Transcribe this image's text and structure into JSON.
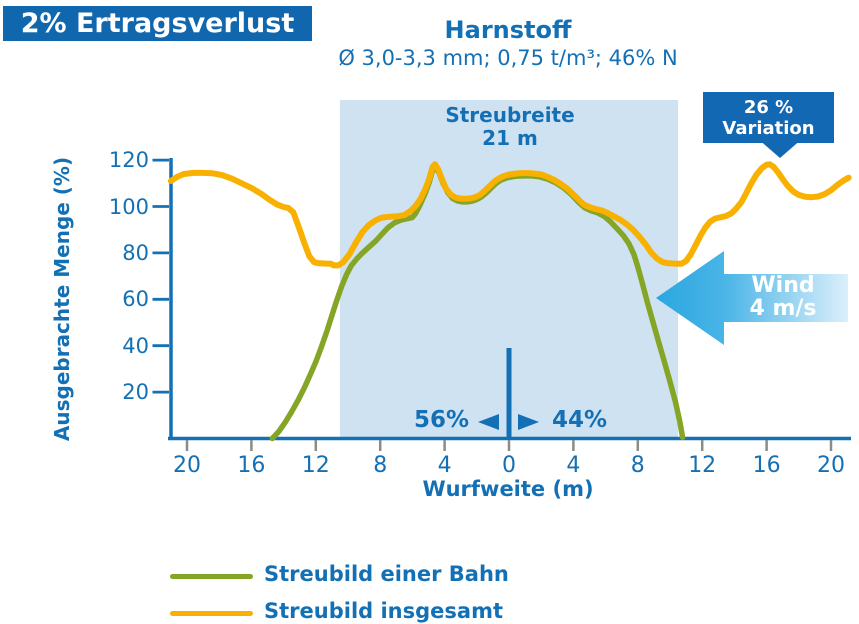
{
  "header": {
    "badge": "2% Ertragsverlust",
    "title": "Harnstoff",
    "subtitle": "Ø 3,0-3,3 mm; 0,75 t/m³; 46% N"
  },
  "annotations": {
    "spread_line1": "Streubreite",
    "spread_line2": "21 m",
    "variation_line1": "26 %",
    "variation_line2": "Variation",
    "wind_line1": "Wind",
    "wind_line2": "4 m/s",
    "share_left": "56%",
    "share_right": "44%"
  },
  "legend": [
    {
      "label": "Streubild einer Bahn",
      "color": "#85a526"
    },
    {
      "label": "Streubild insgesamt",
      "color": "#f8b100"
    }
  ],
  "colors": {
    "primary_blue": "#1470b4",
    "badge_bg": "#1167ae",
    "band": "#cfe2f1",
    "axis": "#1470b4",
    "tick_gray": "#8c8c84",
    "green": "#85a526",
    "orange": "#f8b100",
    "arrow_solid": "#2aa7e0",
    "arrow_light": "#dbeffb",
    "white": "#ffffff"
  },
  "chart_data": {
    "type": "line",
    "title": "Harnstoff",
    "subtitle": "Ø 3,0-3,3 mm; 0,75 t/m³; 46% N",
    "xlabel": "Wurfweite (m)",
    "ylabel": "Ausgebrachte Menge (%)",
    "xlim": [
      -21.2,
      21.2
    ],
    "ylim": [
      0,
      125
    ],
    "grid": false,
    "legend_position": "bottom-left",
    "x_ticks": [
      -20,
      -16,
      -12,
      -8,
      -4,
      0,
      4,
      8,
      12,
      16,
      20
    ],
    "x_tick_labels": [
      "20",
      "16",
      "12",
      "8",
      "4",
      "0",
      "4",
      "8",
      "12",
      "16",
      "20"
    ],
    "y_ticks": [
      20,
      40,
      60,
      80,
      100,
      120
    ],
    "y_tick_labels": [
      "20",
      "40",
      "60",
      "80",
      "100",
      "120"
    ],
    "shaded_band_x": [
      -10.5,
      10.5
    ],
    "shaded_band_label": "Streubreite 21 m",
    "center_marker_x": 0,
    "series": [
      {
        "name": "Streubild einer Bahn",
        "color": "#85a526",
        "points": [
          [
            -14.7,
            0
          ],
          [
            -14.3,
            3
          ],
          [
            -13.9,
            7
          ],
          [
            -13.5,
            11.5
          ],
          [
            -13.1,
            16.5
          ],
          [
            -12.7,
            22
          ],
          [
            -12.35,
            27.5
          ],
          [
            -12,
            33
          ],
          [
            -11.65,
            39.5
          ],
          [
            -11.3,
            46.5
          ],
          [
            -11,
            53
          ],
          [
            -10.7,
            59.5
          ],
          [
            -10.4,
            65.5
          ],
          [
            -10.1,
            70.5
          ],
          [
            -9.8,
            74.5
          ],
          [
            -9.45,
            77.5
          ],
          [
            -9.1,
            80
          ],
          [
            -8.7,
            82.5
          ],
          [
            -8.3,
            85
          ],
          [
            -7.9,
            88
          ],
          [
            -7.5,
            91
          ],
          [
            -7.1,
            93
          ],
          [
            -6.7,
            94.2
          ],
          [
            -6.3,
            94.8
          ],
          [
            -6,
            95.3
          ],
          [
            -5.8,
            97
          ],
          [
            -5.5,
            101
          ],
          [
            -5.2,
            105.8
          ],
          [
            -4.95,
            110.5
          ],
          [
            -4.75,
            115.5
          ],
          [
            -4.55,
            116.8
          ],
          [
            -4.35,
            114.5
          ],
          [
            -4.1,
            110
          ],
          [
            -3.8,
            106
          ],
          [
            -3.5,
            103.5
          ],
          [
            -3.2,
            102.4
          ],
          [
            -2.9,
            102
          ],
          [
            -2.6,
            102
          ],
          [
            -2.3,
            102.3
          ],
          [
            -2,
            103
          ],
          [
            -1.7,
            104.2
          ],
          [
            -1.4,
            106
          ],
          [
            -1.1,
            108
          ],
          [
            -0.8,
            110
          ],
          [
            -0.5,
            111.4
          ],
          [
            -0.1,
            112.4
          ],
          [
            0.4,
            113
          ],
          [
            0.9,
            113.2
          ],
          [
            1.4,
            113.2
          ],
          [
            1.9,
            112.8
          ],
          [
            2.4,
            111.8
          ],
          [
            2.9,
            110.2
          ],
          [
            3.4,
            108
          ],
          [
            3.9,
            105
          ],
          [
            4.3,
            102
          ],
          [
            4.7,
            99.5
          ],
          [
            5.1,
            98.2
          ],
          [
            5.5,
            97.3
          ],
          [
            5.9,
            95.8
          ],
          [
            6.3,
            93.5
          ],
          [
            6.7,
            90.5
          ],
          [
            7.1,
            87.5
          ],
          [
            7.45,
            84
          ],
          [
            7.75,
            79.5
          ],
          [
            8,
            74
          ],
          [
            8.3,
            66.5
          ],
          [
            8.6,
            58.5
          ],
          [
            8.95,
            50
          ],
          [
            9.3,
            41.5
          ],
          [
            9.65,
            33
          ],
          [
            10,
            24.5
          ],
          [
            10.35,
            15.5
          ],
          [
            10.6,
            7.5
          ],
          [
            10.78,
            0.5
          ]
        ]
      },
      {
        "name": "Streubild insgesamt",
        "color": "#f8b100",
        "points": [
          [
            -21,
            111
          ],
          [
            -20.6,
            112.8
          ],
          [
            -20.2,
            114
          ],
          [
            -19.6,
            114.5
          ],
          [
            -19,
            114.5
          ],
          [
            -18.4,
            114.3
          ],
          [
            -17.8,
            113.5
          ],
          [
            -17.2,
            112
          ],
          [
            -16.6,
            110
          ],
          [
            -16,
            108
          ],
          [
            -15.4,
            105.5
          ],
          [
            -14.9,
            103
          ],
          [
            -14.4,
            100.8
          ],
          [
            -14,
            99.8
          ],
          [
            -13.7,
            99.3
          ],
          [
            -13.4,
            97.5
          ],
          [
            -13.05,
            91
          ],
          [
            -12.7,
            84
          ],
          [
            -12.4,
            78.5
          ],
          [
            -12.1,
            76
          ],
          [
            -11.8,
            75.5
          ],
          [
            -11.4,
            75.4
          ],
          [
            -11.05,
            75.3
          ],
          [
            -10.9,
            74.6
          ],
          [
            -10.6,
            74.6
          ],
          [
            -10.3,
            76
          ],
          [
            -9.9,
            79.5
          ],
          [
            -9.5,
            84.5
          ],
          [
            -9.1,
            89
          ],
          [
            -8.7,
            92
          ],
          [
            -8.3,
            94
          ],
          [
            -7.9,
            95.2
          ],
          [
            -7.4,
            95.6
          ],
          [
            -6.9,
            95.8
          ],
          [
            -6.5,
            96.3
          ],
          [
            -6.1,
            98.2
          ],
          [
            -5.8,
            100.2
          ],
          [
            -5.5,
            103.2
          ],
          [
            -5.2,
            107.5
          ],
          [
            -4.95,
            112
          ],
          [
            -4.75,
            117
          ],
          [
            -4.6,
            118.2
          ],
          [
            -4.4,
            116
          ],
          [
            -4.15,
            111.5
          ],
          [
            -3.9,
            107.5
          ],
          [
            -3.6,
            105
          ],
          [
            -3.3,
            103.8
          ],
          [
            -3,
            103.4
          ],
          [
            -2.7,
            103.3
          ],
          [
            -2.4,
            103.5
          ],
          [
            -2.1,
            104
          ],
          [
            -1.8,
            105
          ],
          [
            -1.5,
            106.8
          ],
          [
            -1.2,
            108.8
          ],
          [
            -0.9,
            110.8
          ],
          [
            -0.6,
            112.2
          ],
          [
            -0.3,
            113.2
          ],
          [
            0,
            113.8
          ],
          [
            0.4,
            114.2
          ],
          [
            0.8,
            114.4
          ],
          [
            1.2,
            114.4
          ],
          [
            1.6,
            114.2
          ],
          [
            2,
            113.8
          ],
          [
            2.4,
            112.8
          ],
          [
            2.8,
            111.5
          ],
          [
            3.2,
            109.8
          ],
          [
            3.6,
            107.8
          ],
          [
            4,
            105.2
          ],
          [
            4.35,
            102.8
          ],
          [
            4.65,
            100.8
          ],
          [
            4.9,
            100
          ],
          [
            5.15,
            99.4
          ],
          [
            5.45,
            98.8
          ],
          [
            5.75,
            98.3
          ],
          [
            6.1,
            97.3
          ],
          [
            6.5,
            95.8
          ],
          [
            6.9,
            94.3
          ],
          [
            7.3,
            92.4
          ],
          [
            7.7,
            90
          ],
          [
            8.1,
            87
          ],
          [
            8.5,
            83.5
          ],
          [
            8.85,
            80
          ],
          [
            9.2,
            77.5
          ],
          [
            9.55,
            76
          ],
          [
            9.9,
            75.5
          ],
          [
            10.3,
            75.4
          ],
          [
            10.7,
            75.3
          ],
          [
            11,
            76.5
          ],
          [
            11.3,
            79.5
          ],
          [
            11.6,
            83.5
          ],
          [
            11.9,
            87.5
          ],
          [
            12.2,
            91
          ],
          [
            12.5,
            93.5
          ],
          [
            12.8,
            94.8
          ],
          [
            13.1,
            95.3
          ],
          [
            13.45,
            95.8
          ],
          [
            13.8,
            97
          ],
          [
            14.1,
            99
          ],
          [
            14.45,
            102
          ],
          [
            14.75,
            106
          ],
          [
            15.05,
            110
          ],
          [
            15.35,
            113.5
          ],
          [
            15.7,
            116.5
          ],
          [
            16,
            118
          ],
          [
            16.2,
            118.2
          ],
          [
            16.45,
            117
          ],
          [
            16.7,
            114.8
          ],
          [
            17,
            111.8
          ],
          [
            17.3,
            109
          ],
          [
            17.65,
            106.5
          ],
          [
            18,
            105
          ],
          [
            18.4,
            104.2
          ],
          [
            18.8,
            104
          ],
          [
            19.2,
            104.3
          ],
          [
            19.6,
            105.3
          ],
          [
            20,
            107
          ],
          [
            20.4,
            109.3
          ],
          [
            20.8,
            111.3
          ],
          [
            21.1,
            112.4
          ]
        ]
      }
    ],
    "annotations": [
      {
        "text": "26 % Variation",
        "points_at_x": 16.2
      },
      {
        "text": "Wind 4 m/s",
        "direction": "left"
      },
      {
        "text": "56% left of center, 44% right of center"
      }
    ]
  }
}
